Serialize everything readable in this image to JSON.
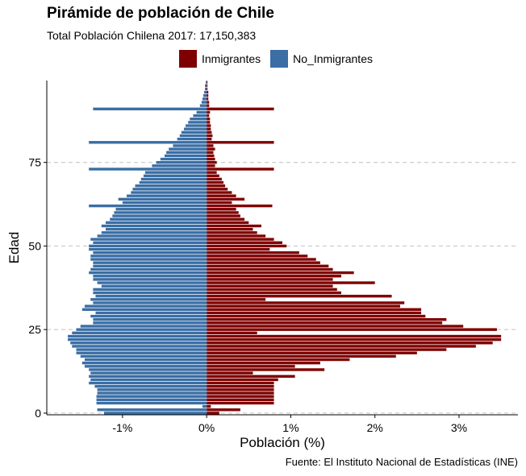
{
  "chart_data": {
    "type": "bar",
    "orientation": "horizontal",
    "title": "Pirámide de población de Chile",
    "subtitle": "Total Población Chilena 2017:  17,150,383",
    "xlabel": "Población (%)",
    "ylabel": "Edad",
    "caption": "Fuente:  El Instituto Nacional de Estadísticas (INE)",
    "legend_position": "top",
    "xlim": [
      -1.9,
      3.7
    ],
    "x_ticks": [
      -1,
      0,
      1,
      2,
      3
    ],
    "x_tick_labels": [
      "-1%",
      "0%",
      "1%",
      "2%",
      "3%"
    ],
    "ylim": [
      -0.5,
      99.5
    ],
    "y_ticks": [
      0,
      25,
      50,
      75
    ],
    "y_tick_labels": [
      "0",
      "25",
      "50",
      "75"
    ],
    "grid_y": true,
    "ages": [
      0,
      1,
      2,
      3,
      4,
      5,
      6,
      7,
      8,
      9,
      10,
      11,
      12,
      13,
      14,
      15,
      16,
      17,
      18,
      19,
      20,
      21,
      22,
      23,
      24,
      25,
      26,
      27,
      28,
      29,
      30,
      31,
      32,
      33,
      34,
      35,
      36,
      37,
      38,
      39,
      40,
      41,
      42,
      43,
      44,
      45,
      46,
      47,
      48,
      49,
      50,
      51,
      52,
      53,
      54,
      55,
      56,
      57,
      58,
      59,
      60,
      61,
      62,
      63,
      64,
      65,
      66,
      67,
      68,
      69,
      70,
      71,
      72,
      73,
      74,
      75,
      76,
      77,
      78,
      79,
      80,
      81,
      82,
      83,
      84,
      85,
      86,
      87,
      88,
      89,
      90,
      91,
      92,
      93,
      94,
      95,
      96,
      97,
      98,
      99
    ],
    "series": [
      {
        "name": "Inmigrantes",
        "color": "#7f0000",
        "values": [
          0.15,
          0.4,
          0.05,
          0.8,
          0.8,
          0.8,
          0.8,
          0.8,
          0.8,
          0.8,
          0.85,
          1.05,
          0.55,
          1.4,
          1.05,
          1.35,
          1.7,
          2.25,
          2.5,
          2.85,
          3.2,
          3.4,
          3.5,
          3.5,
          0.6,
          3.45,
          3.05,
          2.8,
          2.85,
          2.6,
          2.55,
          2.55,
          2.3,
          2.35,
          0.7,
          2.2,
          1.6,
          1.55,
          1.5,
          2.0,
          1.5,
          1.6,
          1.75,
          1.5,
          1.45,
          1.35,
          1.3,
          1.2,
          1.1,
          0.75,
          0.95,
          0.9,
          0.8,
          0.7,
          0.6,
          0.55,
          0.65,
          0.5,
          0.45,
          0.4,
          0.38,
          0.35,
          0.78,
          0.3,
          0.45,
          0.35,
          0.3,
          0.25,
          0.22,
          0.2,
          0.18,
          0.15,
          0.12,
          0.8,
          0.1,
          0.12,
          0.1,
          0.09,
          0.08,
          0.1,
          0.08,
          0.8,
          0.06,
          0.07,
          0.06,
          0.05,
          0.05,
          0.04,
          0.04,
          0.03,
          0.04,
          0.8,
          0.03,
          0.03,
          0.02,
          0.02,
          0.02,
          0.01,
          0.01,
          0.01
        ]
      },
      {
        "name": "No_Inmigrantes",
        "color": "#3a6ea5",
        "values": [
          -1.22,
          -1.3,
          -0.05,
          -1.31,
          -1.31,
          -1.31,
          -1.3,
          -1.3,
          -1.33,
          -1.4,
          -1.38,
          -1.4,
          -1.38,
          -1.4,
          -1.45,
          -1.48,
          -1.45,
          -1.5,
          -1.55,
          -1.55,
          -1.6,
          -1.62,
          -1.65,
          -1.65,
          -1.6,
          -1.55,
          -1.5,
          -1.35,
          -1.35,
          -1.38,
          -1.32,
          -1.48,
          -1.45,
          -1.35,
          -1.38,
          -1.32,
          -1.35,
          -1.35,
          -1.25,
          -1.3,
          -1.35,
          -1.35,
          -1.4,
          -1.38,
          -1.35,
          -1.35,
          -1.38,
          -1.38,
          -1.35,
          -1.4,
          -1.4,
          -1.35,
          -1.38,
          -1.3,
          -1.25,
          -1.2,
          -1.25,
          -1.2,
          -1.15,
          -1.12,
          -1.1,
          -1.08,
          -1.4,
          -1.0,
          -1.05,
          -0.95,
          -0.9,
          -0.88,
          -0.85,
          -0.8,
          -0.78,
          -0.75,
          -0.73,
          -1.4,
          -0.65,
          -0.6,
          -0.55,
          -0.5,
          -0.48,
          -0.45,
          -0.4,
          -1.4,
          -0.35,
          -0.32,
          -0.3,
          -0.27,
          -0.25,
          -0.22,
          -0.2,
          -0.16,
          -0.12,
          -1.35,
          -0.08,
          -0.06,
          -0.05,
          -0.04,
          -0.03,
          -0.02,
          -0.02,
          -0.01
        ]
      }
    ]
  }
}
